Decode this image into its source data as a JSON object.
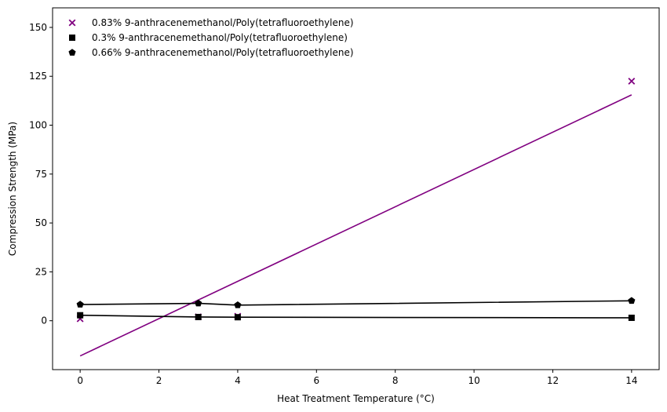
{
  "chart_data": {
    "type": "scatter",
    "xlabel": "Heat Treatment Temperature (°C)",
    "ylabel": "Compression Strength (MPa)",
    "xlim": [
      -0.7,
      14.7
    ],
    "ylim": [
      -25,
      160
    ],
    "xticks": [
      0,
      2,
      4,
      6,
      8,
      10,
      12,
      14
    ],
    "yticks": [
      0,
      25,
      50,
      75,
      100,
      125,
      150
    ],
    "grid": false,
    "legend_position": "top-left",
    "series": [
      {
        "name": "0.83% 9-anthracenemethanol/Poly(tetrafluoroethylene)",
        "marker": "x",
        "color": "#800080",
        "x": [
          0,
          3,
          4,
          14
        ],
        "y": [
          1.0,
          2.0,
          2.3,
          122.5
        ],
        "fit_line": {
          "x": [
            0,
            14
          ],
          "y": [
            -18.0,
            115.5
          ]
        }
      },
      {
        "name": "0.3% 9-anthracenemethanol/Poly(tetrafluoroethylene)",
        "marker": "square",
        "color": "#000000",
        "x": [
          0,
          3,
          4,
          14
        ],
        "y": [
          2.8,
          1.9,
          1.8,
          1.5
        ],
        "connect": true
      },
      {
        "name": "0.66% 9-anthracenemethanol/Poly(tetrafluoroethylene)",
        "marker": "pentagon",
        "color": "#000000",
        "x": [
          0,
          3,
          4,
          14
        ],
        "y": [
          8.3,
          8.9,
          8.0,
          10.2
        ],
        "connect": true
      }
    ]
  }
}
